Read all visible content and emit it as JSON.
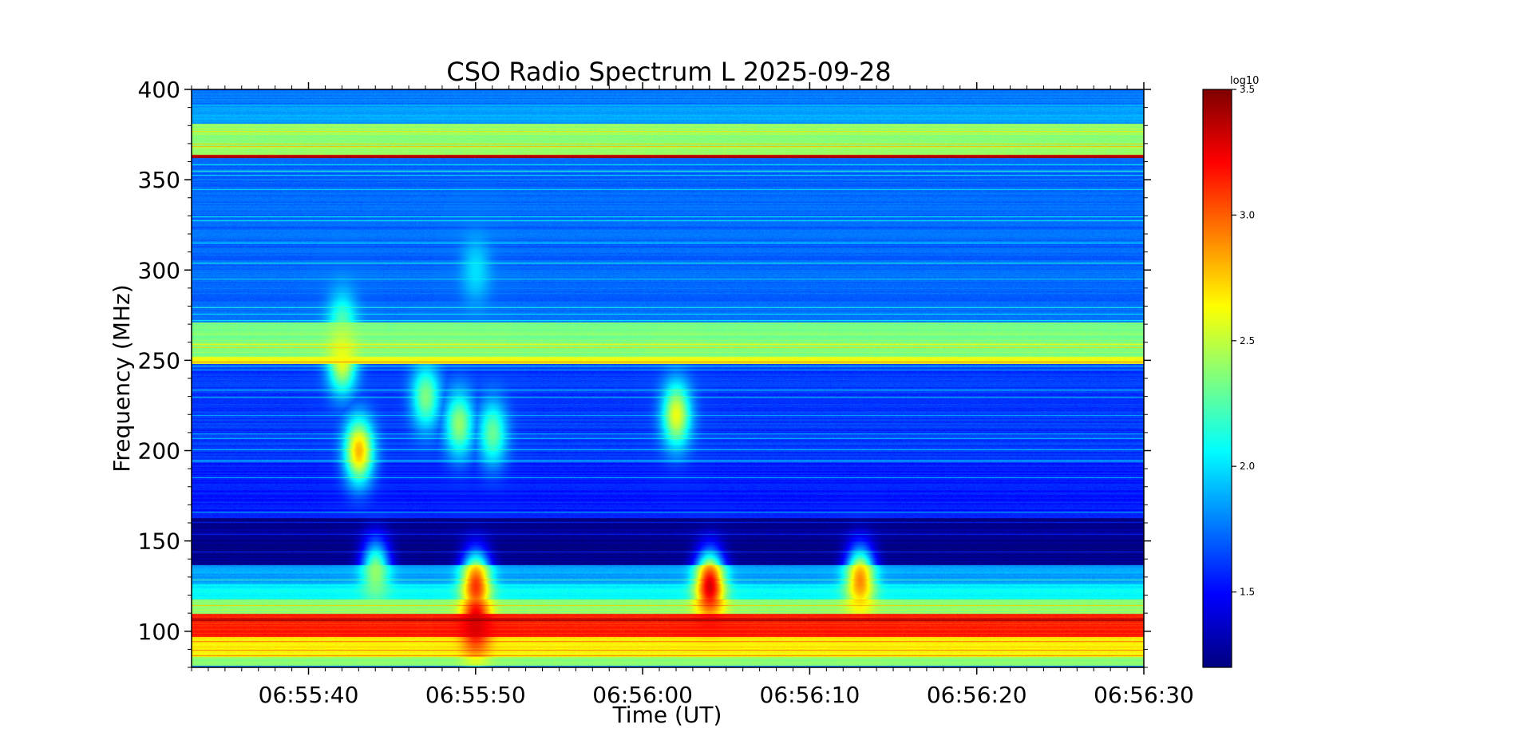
{
  "chart_data": {
    "type": "heatmap",
    "title": "CSO Radio Spectrum L 2025-09-28",
    "xlabel": "Time (UT)",
    "ylabel": "Frequency (MHz)",
    "x_range": [
      "06:55:33",
      "06:56:30"
    ],
    "x_ticks": [
      "06:55:40",
      "06:55:50",
      "06:56:00",
      "06:56:10",
      "06:56:20",
      "06:56:30"
    ],
    "ylim": [
      80,
      400
    ],
    "y_ticks": [
      100,
      150,
      200,
      250,
      300,
      350,
      400
    ],
    "colorbar": {
      "label": "log10",
      "range": [
        1.2,
        3.5
      ],
      "ticks": [
        "1.5",
        "2.0",
        "2.5",
        "3.0",
        "3.5"
      ],
      "colormap": "jet"
    },
    "background_level": 1.75,
    "bands": [
      {
        "f0": 81,
        "f1": 86,
        "level": 2.4
      },
      {
        "f0": 86,
        "f1": 97,
        "level": 2.65
      },
      {
        "f0": 97,
        "f1": 110,
        "level": 3.15
      },
      {
        "f0": 110,
        "f1": 118,
        "level": 2.4
      },
      {
        "f0": 118,
        "f1": 126,
        "level": 2.05
      },
      {
        "f0": 126,
        "f1": 137,
        "level": 1.85
      },
      {
        "f0": 137,
        "f1": 163,
        "level": 1.22
      },
      {
        "f0": 163,
        "f1": 195,
        "level": 1.55
      },
      {
        "f0": 195,
        "f1": 248,
        "level": 1.62
      },
      {
        "f0": 248,
        "f1": 252,
        "level": 2.6
      },
      {
        "f0": 252,
        "f1": 271,
        "level": 2.35
      },
      {
        "f0": 271,
        "f1": 362,
        "level": 1.72
      },
      {
        "f0": 362,
        "f1": 364,
        "level": 3.35
      },
      {
        "f0": 364,
        "f1": 381,
        "level": 2.4
      },
      {
        "f0": 381,
        "f1": 392,
        "level": 1.85
      },
      {
        "f0": 392,
        "f1": 400,
        "level": 1.75
      }
    ],
    "bursts": [
      {
        "t": "06:55:42",
        "f": 270,
        "level": 2.25
      },
      {
        "t": "06:55:42",
        "f": 250,
        "level": 2.6
      },
      {
        "t": "06:55:43",
        "f": 200,
        "level": 2.8
      },
      {
        "t": "06:55:47",
        "f": 230,
        "level": 2.35
      },
      {
        "t": "06:55:49",
        "f": 215,
        "level": 2.4
      },
      {
        "t": "06:55:51",
        "f": 210,
        "level": 2.3
      },
      {
        "t": "06:55:50",
        "f": 300,
        "level": 2.0
      },
      {
        "t": "06:56:02",
        "f": 220,
        "level": 2.6
      },
      {
        "t": "06:56:04",
        "f": 125,
        "level": 3.3
      },
      {
        "t": "06:55:50",
        "f": 125,
        "level": 3.1
      },
      {
        "t": "06:55:44",
        "f": 133,
        "level": 2.4
      },
      {
        "t": "06:56:13",
        "f": 128,
        "level": 2.9
      },
      {
        "t": "06:55:50",
        "f": 106,
        "level": 3.3
      }
    ]
  }
}
